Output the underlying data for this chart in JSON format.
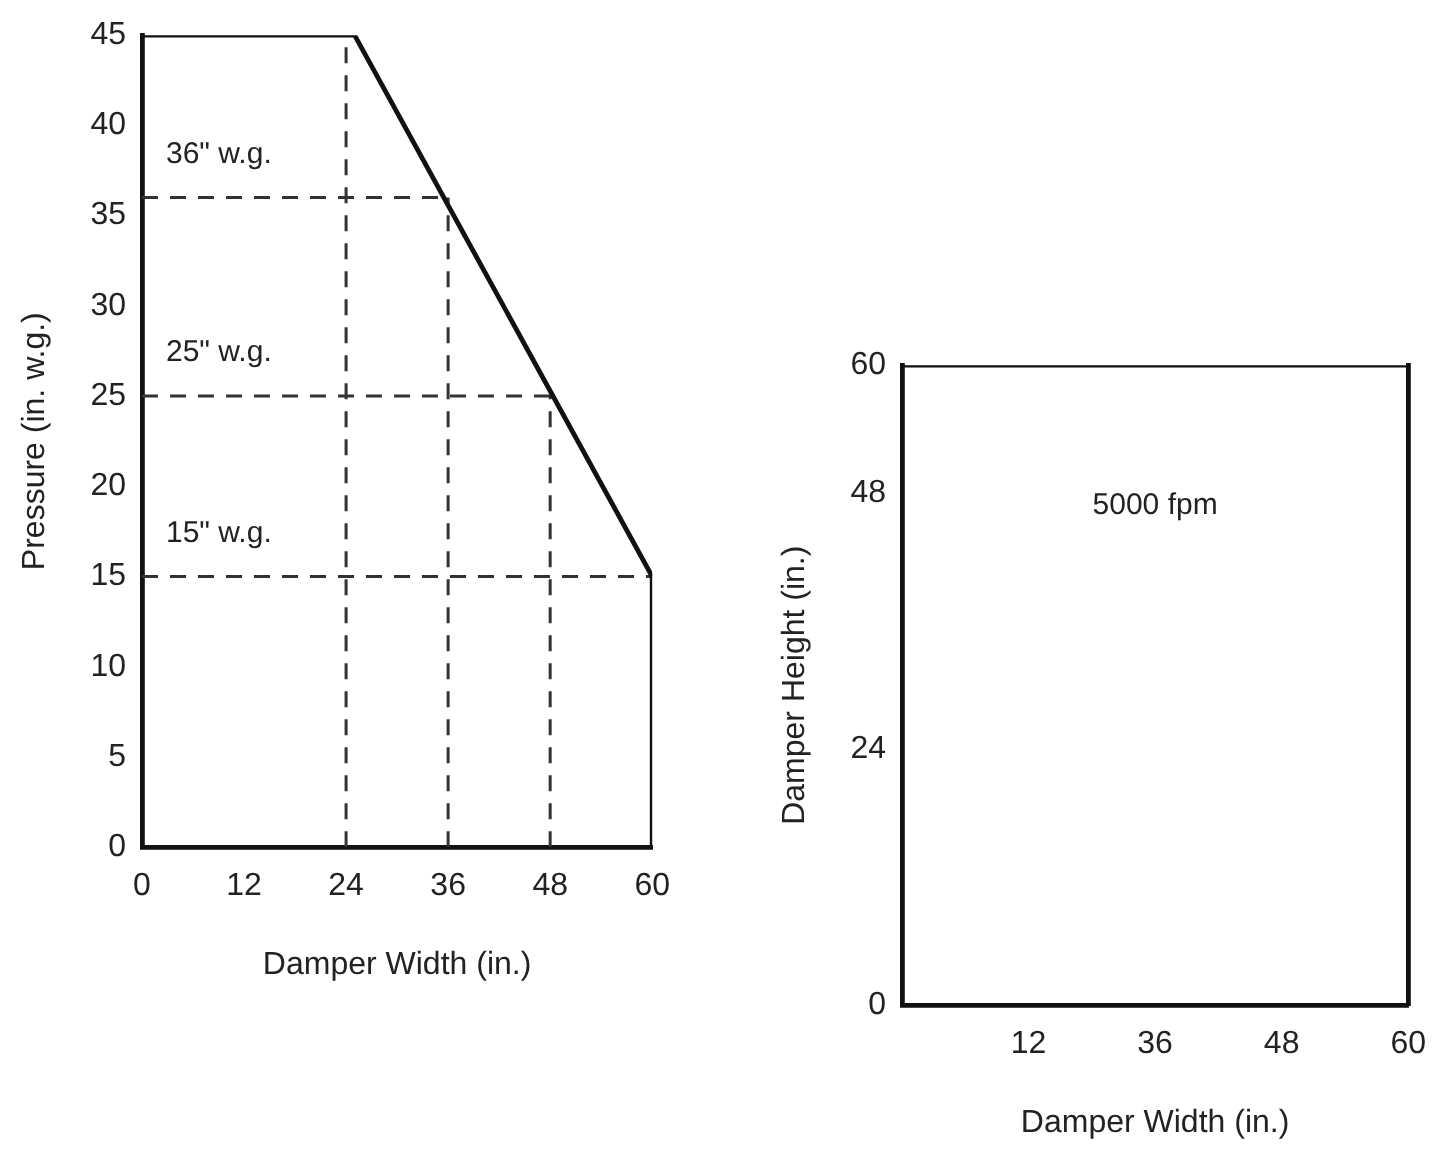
{
  "chart_data": [
    {
      "type": "line",
      "xlabel": "Damper Width (in.)",
      "ylabel": "Pressure (in. w.g.)",
      "xlim": [
        0,
        60
      ],
      "xticks": [
        0,
        12,
        24,
        36,
        48,
        60
      ],
      "ylim": [
        0,
        45
      ],
      "yticks": [
        0,
        5,
        10,
        15,
        20,
        25,
        30,
        35,
        40,
        45
      ],
      "grid": false,
      "legend": false,
      "marker": "none",
      "series": [
        {
          "color": "#111111",
          "x": [
            0,
            25,
            60
          ],
          "values": [
            45,
            45,
            15
          ],
          "line_style": "solid"
        },
        {
          "color": "#111111",
          "x": [
            60,
            60
          ],
          "values": [
            15,
            0
          ],
          "line_style": "solid"
        },
        {
          "color": "#333333",
          "x": [
            0,
            60
          ],
          "values": [
            15,
            15
          ],
          "line_style": "dashed"
        },
        {
          "color": "#333333",
          "x": [
            0,
            48
          ],
          "values": [
            25,
            25
          ],
          "line_style": "dashed"
        },
        {
          "color": "#333333",
          "x": [
            0,
            36
          ],
          "values": [
            36,
            36
          ],
          "line_style": "dashed"
        },
        {
          "color": "#333333",
          "x": [
            24,
            24
          ],
          "values": [
            0,
            45
          ],
          "line_style": "dashed"
        },
        {
          "color": "#333333",
          "x": [
            36,
            36
          ],
          "values": [
            0,
            36
          ],
          "line_style": "dashed"
        },
        {
          "color": "#333333",
          "x": [
            48,
            48
          ],
          "values": [
            0,
            25
          ],
          "line_style": "dashed"
        }
      ],
      "annotations": [
        {
          "text": "36\" w.g.",
          "y": 36
        },
        {
          "text": "25\" w.g.",
          "y": 25
        },
        {
          "text": "15\" w.g.",
          "y": 15
        }
      ]
    },
    {
      "type": "line",
      "xlabel": "Damper Width (in.)",
      "ylabel": "Damper Height (in.)",
      "categories": [
        null,
        "12",
        "36",
        "48",
        "60"
      ],
      "ylim": [
        0,
        60
      ],
      "yticks": [
        0,
        24,
        48,
        60
      ],
      "grid": false,
      "legend": false,
      "marker": "none",
      "series": [
        {
          "color": "#111111",
          "values": [
            60,
            60,
            60,
            60,
            60
          ],
          "line_style": "solid"
        }
      ],
      "annotations": [
        "5000 fpm"
      ]
    }
  ]
}
